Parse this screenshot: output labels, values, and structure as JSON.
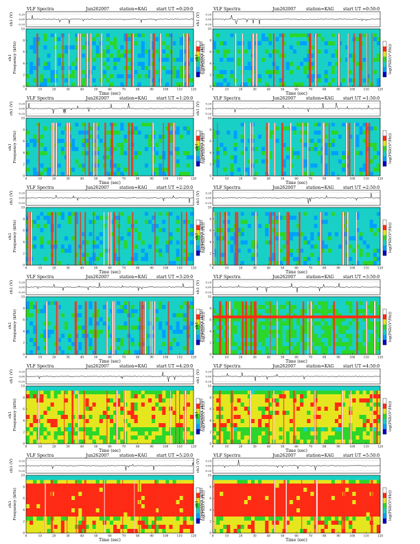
{
  "figure": {
    "panel_header": {
      "product": "VLF Spectra",
      "date": "Jun262007",
      "station": "station=KAG",
      "start_prefix": "start  UT"
    },
    "labels": {
      "top_ylabel": "ch1 (V)",
      "spec_ylabel_top": "ch1",
      "spec_ylabel_bottom": "Frequency  (kHz)",
      "xlabel": "Time  (sec)",
      "colorbar_label": "log(PSD/(V²/Hz))"
    },
    "top_axis": {
      "ticks": [
        "0.20",
        "0.00",
        "-0.20"
      ]
    },
    "colorbar": {
      "colors": [
        "#0000c8",
        "#00a0ff",
        "#19d0c6",
        "#2cd62a",
        "#e6e61e",
        "#ff2a14",
        "#ffffff"
      ]
    }
  },
  "chart_data": [
    {
      "type": "heatmap",
      "start": "0:20:0",
      "xlim": [
        0,
        120
      ],
      "ylim": [
        0,
        10
      ],
      "xticks": [
        0,
        10,
        20,
        30,
        40,
        50,
        60,
        70,
        80,
        90,
        100,
        110,
        120
      ],
      "yticks": [
        0,
        2,
        4,
        6,
        8,
        10
      ],
      "level": "low",
      "band_khz": null
    },
    {
      "type": "heatmap",
      "start": "0:50:0",
      "xlim": [
        0,
        120
      ],
      "ylim": [
        0,
        10
      ],
      "xticks": [
        0,
        10,
        20,
        30,
        40,
        50,
        60,
        70,
        80,
        90,
        100,
        110,
        120
      ],
      "yticks": [
        0,
        2,
        4,
        6,
        8,
        10
      ],
      "level": "low",
      "band_khz": null
    },
    {
      "type": "heatmap",
      "start": "1:20:0",
      "xlim": [
        0,
        120
      ],
      "ylim": [
        0,
        10
      ],
      "xticks": [
        0,
        10,
        20,
        30,
        40,
        50,
        60,
        70,
        80,
        90,
        100,
        110,
        120
      ],
      "yticks": [
        0,
        2,
        4,
        6,
        8,
        10
      ],
      "level": "low",
      "band_khz": null
    },
    {
      "type": "heatmap",
      "start": "1:50:0",
      "xlim": [
        0,
        120
      ],
      "ylim": [
        0,
        10
      ],
      "xticks": [
        0,
        10,
        20,
        30,
        40,
        50,
        60,
        70,
        80,
        90,
        100,
        110,
        120
      ],
      "yticks": [
        0,
        2,
        4,
        6,
        8,
        10
      ],
      "level": "low",
      "band_khz": null
    },
    {
      "type": "heatmap",
      "start": "2:20:0",
      "xlim": [
        0,
        120
      ],
      "ylim": [
        0,
        10
      ],
      "xticks": [
        0,
        10,
        20,
        30,
        40,
        50,
        60,
        70,
        80,
        90,
        100,
        110,
        120
      ],
      "yticks": [
        0,
        2,
        4,
        6,
        8,
        10
      ],
      "level": "low",
      "band_khz": null
    },
    {
      "type": "heatmap",
      "start": "2:50:0",
      "xlim": [
        0,
        120
      ],
      "ylim": [
        0,
        10
      ],
      "xticks": [
        0,
        10,
        20,
        30,
        40,
        50,
        60,
        70,
        80,
        90,
        100,
        110,
        120
      ],
      "yticks": [
        0,
        2,
        4,
        6,
        8,
        10
      ],
      "level": "low",
      "band_khz": null
    },
    {
      "type": "heatmap",
      "start": "3:20:0",
      "xlim": [
        0,
        120
      ],
      "ylim": [
        0,
        10
      ],
      "xticks": [
        0,
        10,
        20,
        30,
        40,
        50,
        60,
        70,
        80,
        90,
        100,
        110,
        120
      ],
      "yticks": [
        0,
        2,
        4,
        6,
        8,
        10
      ],
      "level": "low",
      "band_khz": null
    },
    {
      "type": "heatmap",
      "start": "3:50:0",
      "xlim": [
        0,
        120
      ],
      "ylim": [
        0,
        10
      ],
      "xticks": [
        0,
        10,
        20,
        30,
        40,
        50,
        60,
        70,
        80,
        90,
        100,
        110,
        120
      ],
      "yticks": [
        0,
        2,
        4,
        6,
        8,
        10
      ],
      "level": "mid",
      "band_khz": 6.5
    },
    {
      "type": "heatmap",
      "start": "4:20:0",
      "xlim": [
        0,
        120
      ],
      "ylim": [
        0,
        10
      ],
      "xticks": [
        0,
        10,
        20,
        30,
        40,
        50,
        60,
        70,
        80,
        90,
        100,
        110,
        120
      ],
      "yticks": [
        0,
        2,
        4,
        6,
        8,
        10
      ],
      "level": "high",
      "band_khz": null
    },
    {
      "type": "heatmap",
      "start": "4:50:0",
      "xlim": [
        0,
        120
      ],
      "ylim": [
        0,
        10
      ],
      "xticks": [
        0,
        10,
        20,
        30,
        40,
        50,
        60,
        70,
        80,
        90,
        100,
        110,
        120
      ],
      "yticks": [
        0,
        2,
        4,
        6,
        8,
        10
      ],
      "level": "high",
      "band_khz": null
    },
    {
      "type": "heatmap",
      "start": "5:20:0",
      "xlim": [
        0,
        120
      ],
      "ylim": [
        0,
        10
      ],
      "xticks": [
        0,
        10,
        20,
        30,
        40,
        50,
        60,
        70,
        80,
        90,
        100,
        110,
        120
      ],
      "yticks": [
        0,
        2,
        4,
        6,
        8,
        10
      ],
      "level": "very_high",
      "band_khz": null
    },
    {
      "type": "heatmap",
      "start": "5:50:0",
      "xlim": [
        0,
        120
      ],
      "ylim": [
        0,
        10
      ],
      "xticks": [
        0,
        10,
        20,
        30,
        40,
        50,
        60,
        70,
        80,
        90,
        100,
        110,
        120
      ],
      "yticks": [
        0,
        2,
        4,
        6,
        8,
        10
      ],
      "level": "very_high",
      "band_khz": null
    }
  ]
}
